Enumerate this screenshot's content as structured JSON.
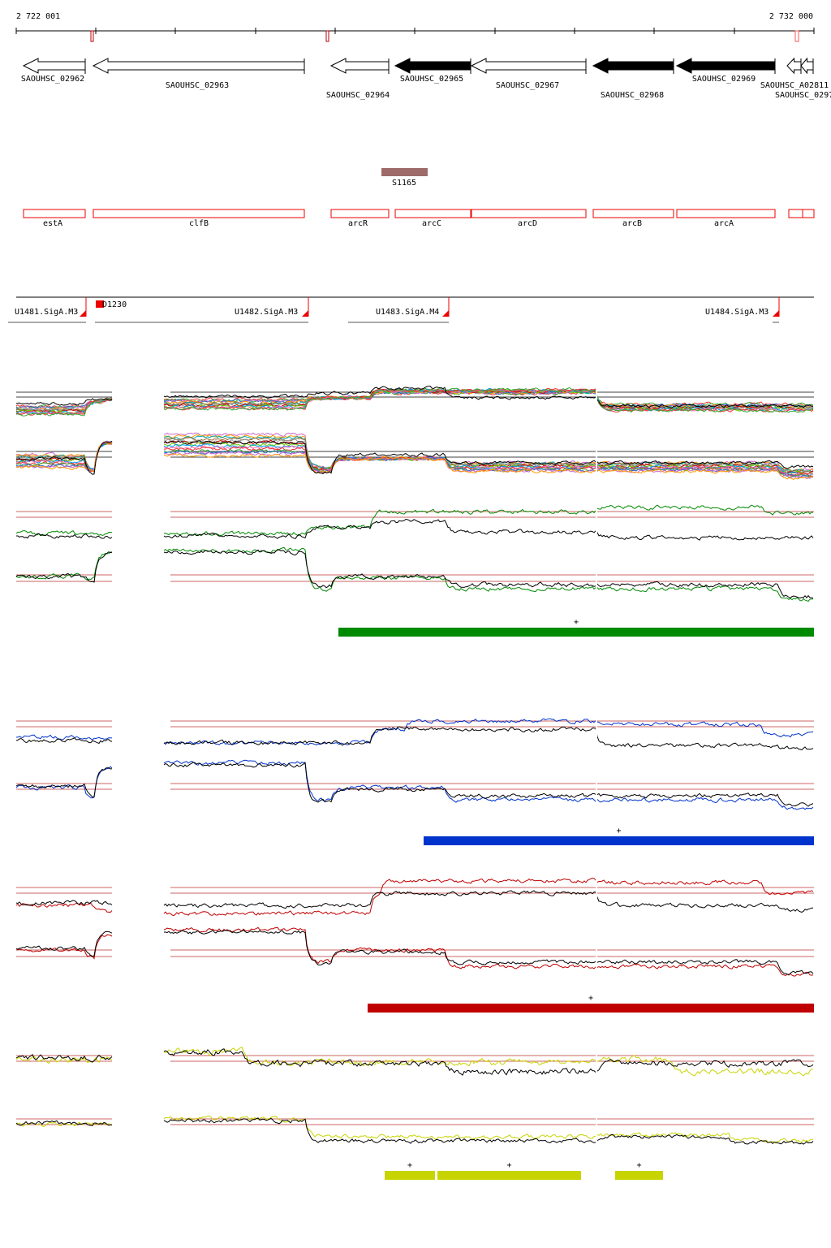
{
  "ruler": {
    "start_label": "2 722 001",
    "end_label": "2 732 000",
    "start": 2722001,
    "end": 2732000
  },
  "genes": [
    {
      "name": "SAOUHSC_02962",
      "strand": "-",
      "fill": "white"
    },
    {
      "name": "SAOUHSC_02963",
      "strand": "-",
      "fill": "white"
    },
    {
      "name": "SAOUHSC_02964",
      "strand": "-",
      "fill": "white"
    },
    {
      "name": "SAOUHSC_02965",
      "strand": "-",
      "fill": "black"
    },
    {
      "name": "SAOUHSC_02967",
      "strand": "-",
      "fill": "white"
    },
    {
      "name": "SAOUHSC_02968",
      "strand": "-",
      "fill": "black"
    },
    {
      "name": "SAOUHSC_02969",
      "strand": "-",
      "fill": "black"
    },
    {
      "name": "SAOUHSC_A02811",
      "strand": "-",
      "fill": "white"
    },
    {
      "name": "SAOUHSC_0297",
      "strand": "-",
      "fill": "white"
    }
  ],
  "srna": {
    "name": "S1165",
    "color": "#9e6b6b"
  },
  "operon_genes": [
    "estA",
    "clfB",
    "arcR",
    "arcC",
    "arcD",
    "arcB",
    "arcA"
  ],
  "transcription_units": [
    "U1481.SigA.M3",
    "D1230",
    "U1482.SigA.M3",
    "U1483.SigA.M4",
    "U1484.SigA.M3"
  ],
  "conditions": [
    {
      "color": "#008a00",
      "strand_marks": [
        "+"
      ]
    },
    {
      "color": "#0033cc",
      "strand_marks": [
        "+"
      ]
    },
    {
      "color": "#c00000",
      "strand_marks": [
        "+"
      ]
    },
    {
      "color": "#c8d400",
      "strand_marks": [
        "+",
        "+",
        "+"
      ]
    }
  ]
}
